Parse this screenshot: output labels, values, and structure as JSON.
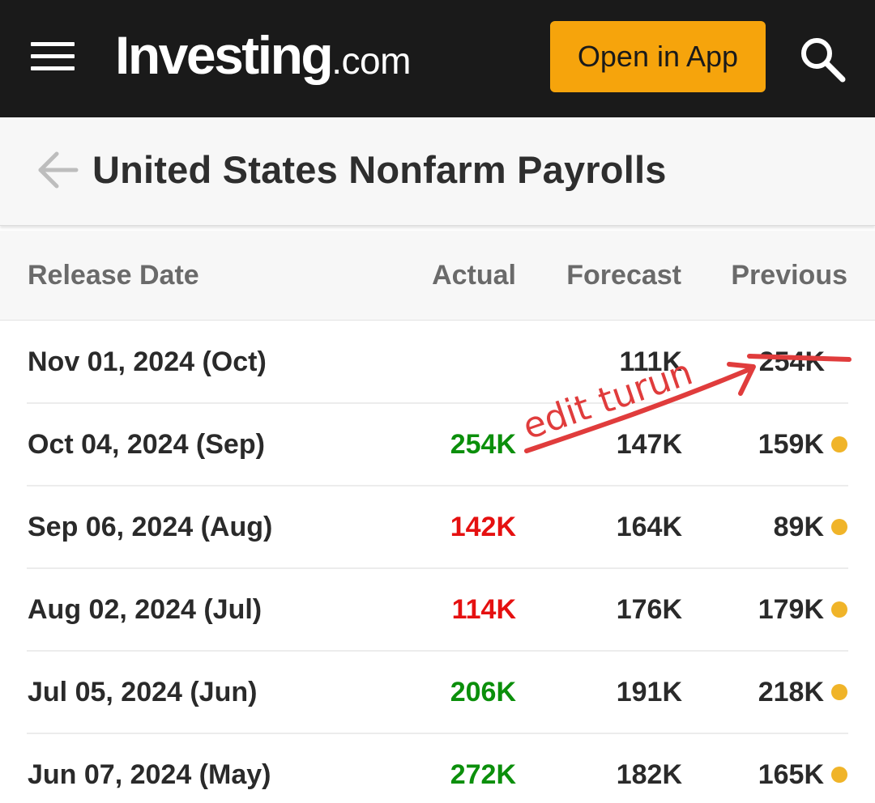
{
  "header": {
    "logo_main": "Investing",
    "logo_suffix": ".com",
    "open_app_label": "Open in App"
  },
  "page": {
    "title": "United States Nonfarm Payrolls"
  },
  "table": {
    "columns": [
      "Release Date",
      "Actual",
      "Forecast",
      "Previous"
    ],
    "rows": [
      {
        "date": "Nov 01, 2024 (Oct)",
        "actual": "",
        "forecast": "111K",
        "previous": "254K"
      },
      {
        "date": "Oct 04, 2024 (Sep)",
        "actual": "254K",
        "forecast": "147K",
        "previous": "159K"
      },
      {
        "date": "Sep 06, 2024 (Aug)",
        "actual": "142K",
        "forecast": "164K",
        "previous": "89K"
      },
      {
        "date": "Aug 02, 2024 (Jul)",
        "actual": "114K",
        "forecast": "176K",
        "previous": "179K"
      },
      {
        "date": "Jul 05, 2024 (Jun)",
        "actual": "206K",
        "forecast": "191K",
        "previous": "218K"
      },
      {
        "date": "Jun 07, 2024 (May)",
        "actual": "272K",
        "forecast": "182K",
        "previous": "165K"
      }
    ]
  },
  "annotation": {
    "text": "edit turun"
  },
  "colors": {
    "topbar": "#1a1a1a",
    "accent": "#f6a40c",
    "positive": "#0b8f0b",
    "negative": "#e51010",
    "revision_dot": "#f0b429",
    "annotation": "#e03c3c"
  },
  "icons": [
    "menu-icon",
    "search-icon",
    "back-arrow-icon",
    "revision-dot-icon"
  ]
}
